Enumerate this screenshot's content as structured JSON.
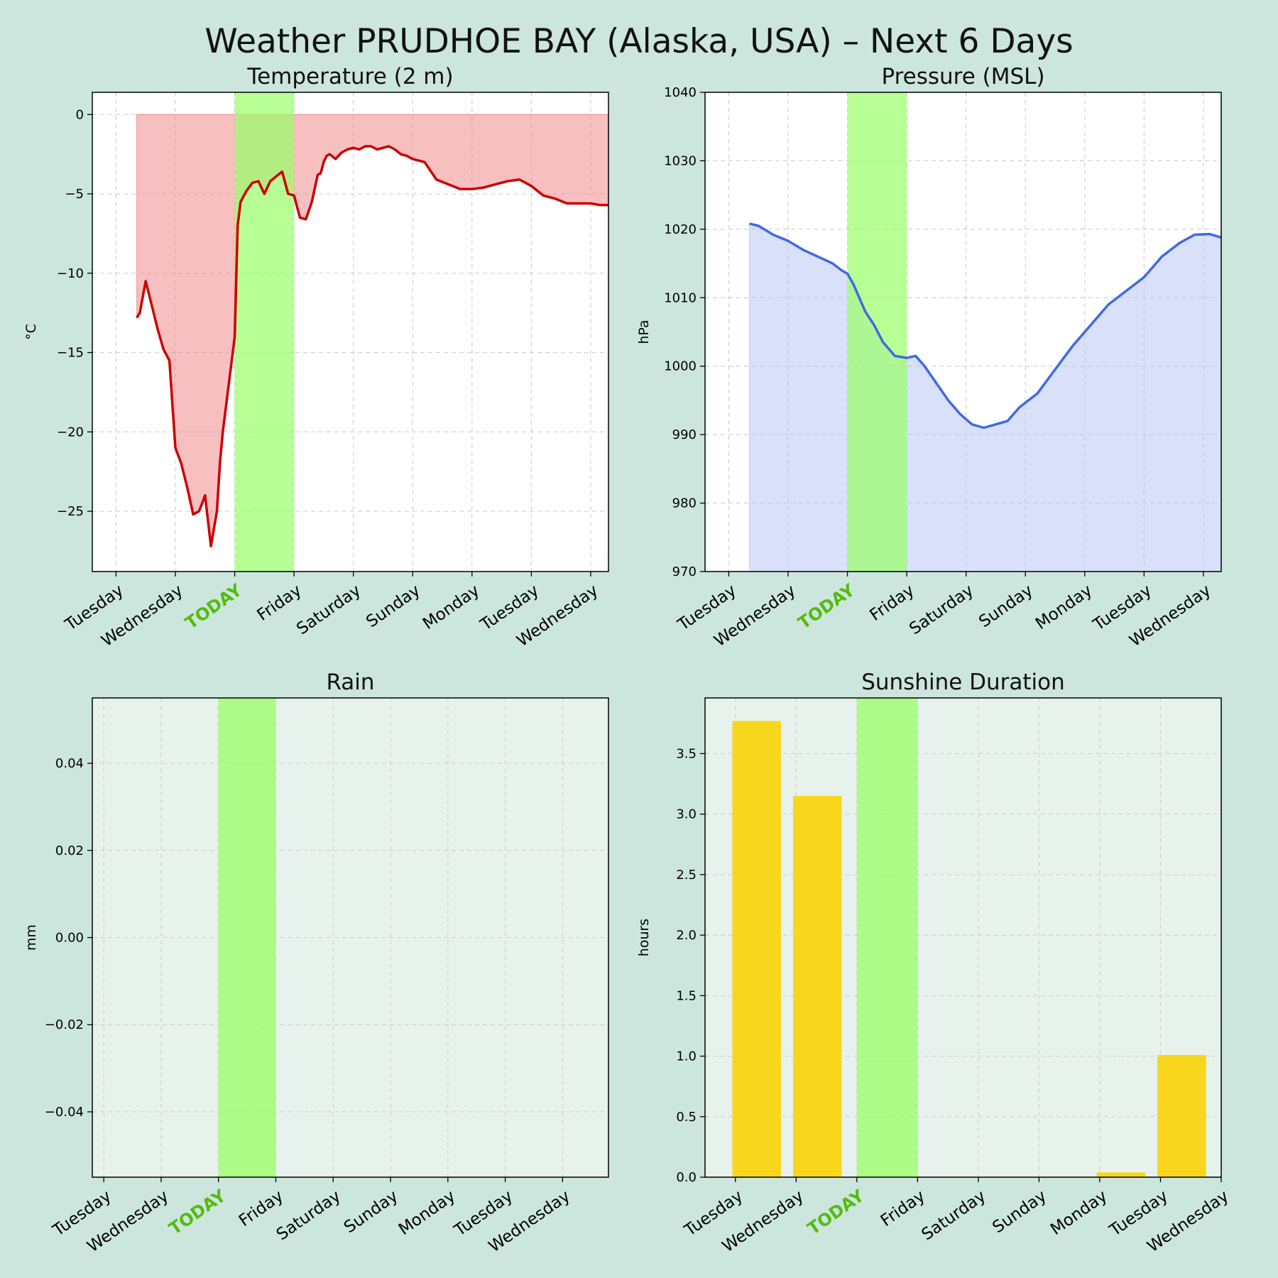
{
  "title": "Weather PRUDHOE BAY (Alaska, USA) – Next 6 Days",
  "colors": {
    "background": "#cce6dd",
    "today_band": "#99ff66",
    "today_label": "#55bb11",
    "temp_line": "#cc0000",
    "temp_fill": "#f08080",
    "pressure_line": "#4169e1",
    "pressure_fill": "#b3c4f5",
    "sun_bar": "#f8d61e",
    "panel_bg_light": "#e8f2ec"
  },
  "x_day_labels": [
    "Tuesday",
    "Wednesday",
    "TODAY",
    "Friday",
    "Saturday",
    "Sunday",
    "Monday",
    "Tuesday",
    "Wednesday"
  ],
  "today_index": 2,
  "chart_data": [
    {
      "type": "area",
      "title": "Temperature (2 m)",
      "ylabel": "°C",
      "ylim": [
        -28.8,
        1.4
      ],
      "yticks": [
        0,
        -5,
        -10,
        -15,
        -20,
        -25
      ],
      "ytick_labels": [
        "0",
        "−5",
        "−10",
        "−15",
        "−20",
        "−25"
      ],
      "xlim": [
        -0.4,
        8.3
      ],
      "today_span": [
        2,
        3
      ],
      "grid": true,
      "x_day_offset": [
        0.35,
        0.4,
        0.5,
        0.6,
        0.7,
        0.8,
        0.9,
        1.0,
        1.1,
        1.2,
        1.3,
        1.4,
        1.5,
        1.6,
        1.7,
        1.75,
        1.8,
        1.9,
        2.0,
        2.05,
        2.1,
        2.2,
        2.3,
        2.4,
        2.5,
        2.6,
        2.7,
        2.8,
        2.9,
        3.0,
        3.1,
        3.2,
        3.3,
        3.4,
        3.45,
        3.5,
        3.55,
        3.6,
        3.7,
        3.8,
        3.9,
        4.0,
        4.1,
        4.2,
        4.3,
        4.4,
        4.5,
        4.6,
        4.7,
        4.8,
        4.9,
        5.0,
        5.2,
        5.4,
        5.6,
        5.8,
        6.0,
        6.2,
        6.4,
        6.6,
        6.8,
        7.0,
        7.2,
        7.4,
        7.6,
        7.8,
        8.0,
        8.15,
        8.3
      ],
      "y": [
        -12.8,
        -12.5,
        -10.5,
        -12.0,
        -13.5,
        -14.8,
        -15.5,
        -21.0,
        -22.0,
        -23.5,
        -25.2,
        -25.0,
        -24.0,
        -27.2,
        -25.0,
        -22.0,
        -20.0,
        -17.0,
        -14.0,
        -7.0,
        -5.5,
        -4.8,
        -4.3,
        -4.2,
        -5.0,
        -4.2,
        -3.9,
        -3.6,
        -5.0,
        -5.1,
        -6.5,
        -6.6,
        -5.5,
        -3.8,
        -3.7,
        -3.0,
        -2.6,
        -2.5,
        -2.8,
        -2.4,
        -2.2,
        -2.1,
        -2.2,
        -2.0,
        -2.0,
        -2.2,
        -2.1,
        -2.0,
        -2.2,
        -2.5,
        -2.6,
        -2.8,
        -3.0,
        -4.1,
        -4.4,
        -4.7,
        -4.7,
        -4.6,
        -4.4,
        -4.2,
        -4.1,
        -4.5,
        -5.1,
        -5.3,
        -5.6,
        -5.6,
        -5.6,
        -5.7,
        -5.7
      ]
    },
    {
      "type": "area",
      "title": "Pressure (MSL)",
      "ylabel": "hPa",
      "ylim": [
        970,
        1040
      ],
      "yticks": [
        970,
        980,
        990,
        1000,
        1010,
        1020,
        1030,
        1040
      ],
      "ytick_labels": [
        "970",
        "980",
        "990",
        "1000",
        "1010",
        "1020",
        "1030",
        "1040"
      ],
      "xlim": [
        -0.4,
        8.3
      ],
      "today_span": [
        2,
        3
      ],
      "grid": true,
      "x_day_offset": [
        0.35,
        0.5,
        0.75,
        1.0,
        1.25,
        1.5,
        1.75,
        1.9,
        2.0,
        2.1,
        2.3,
        2.45,
        2.6,
        2.8,
        3.0,
        3.15,
        3.3,
        3.5,
        3.7,
        3.9,
        4.1,
        4.3,
        4.5,
        4.7,
        4.9,
        5.2,
        5.5,
        5.8,
        6.1,
        6.4,
        6.7,
        7.0,
        7.3,
        7.6,
        7.85,
        8.1,
        8.3
      ],
      "y": [
        1020.8,
        1020.5,
        1019.2,
        1018.3,
        1017.0,
        1016.0,
        1015.0,
        1014.0,
        1013.5,
        1012.0,
        1008.0,
        1006.0,
        1003.5,
        1001.5,
        1001.2,
        1001.5,
        1000.0,
        997.5,
        995.0,
        993.0,
        991.5,
        991.0,
        991.5,
        992.0,
        994.0,
        996.0,
        999.5,
        1003.0,
        1006.0,
        1009.0,
        1011.0,
        1013.0,
        1016.0,
        1018.0,
        1019.2,
        1019.3,
        1018.8
      ]
    },
    {
      "type": "bar",
      "title": "Rain",
      "ylabel": "mm",
      "ylim": [
        -0.055,
        0.055
      ],
      "yticks": [
        -0.04,
        -0.02,
        0.0,
        0.02,
        0.04
      ],
      "ytick_labels": [
        "−0.04",
        "−0.02",
        "0.00",
        "0.02",
        "0.04"
      ],
      "xlim": [
        -0.2,
        8.8
      ],
      "today_span": [
        2,
        3
      ],
      "grid": true,
      "categories": [
        "Tuesday",
        "Wednesday",
        "TODAY",
        "Friday",
        "Saturday",
        "Sunday",
        "Monday",
        "Tuesday",
        "Wednesday"
      ],
      "values": [
        0,
        0,
        0,
        0,
        0,
        0,
        0,
        0,
        0
      ]
    },
    {
      "type": "bar",
      "title": "Sunshine Duration",
      "ylabel": "hours",
      "ylim": [
        0,
        3.96
      ],
      "yticks": [
        0.0,
        0.5,
        1.0,
        1.5,
        2.0,
        2.5,
        3.0,
        3.5
      ],
      "ytick_labels": [
        "0.0",
        "0.5",
        "1.0",
        "1.5",
        "2.0",
        "2.5",
        "3.0",
        "3.5"
      ],
      "xlim": [
        -0.5,
        8.0
      ],
      "today_span": [
        2,
        3
      ],
      "grid": true,
      "categories": [
        "Tuesday",
        "Wednesday",
        "TODAY",
        "Friday",
        "Saturday",
        "Sunday",
        "Monday",
        "Tuesday",
        "Wednesday"
      ],
      "bar_offset": 0.35,
      "values": [
        3.77,
        3.15,
        0,
        0,
        0,
        0,
        0.04,
        1.01,
        0
      ]
    }
  ]
}
